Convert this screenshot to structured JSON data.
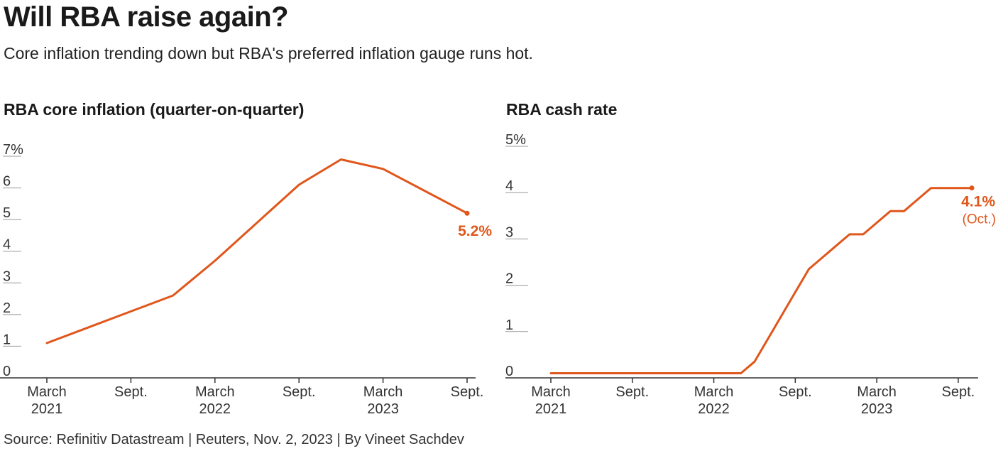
{
  "title": "Will RBA raise again?",
  "subtitle": "Core inflation trending down but RBA's preferred inflation gauge runs hot.",
  "source": "Source: Refinitiv Datastream | Reuters, Nov. 2, 2023 | By Vineet Sachdev",
  "colors": {
    "line": "#e0561b",
    "axis": "#333333",
    "grid": "#999999"
  },
  "chart_data": [
    {
      "type": "line",
      "title": "RBA core inflation (quarter-on-quarter)",
      "ylim": [
        0,
        7
      ],
      "yticks": [
        0,
        1,
        2,
        3,
        4,
        5,
        6,
        7
      ],
      "ytick_labels": [
        "0",
        "1",
        "2",
        "3",
        "4",
        "5",
        "6",
        "7%"
      ],
      "xlim": [
        0,
        10
      ],
      "xticks": [
        {
          "x": 0,
          "line1": "March",
          "line2": "2021"
        },
        {
          "x": 2,
          "line1": "Sept.",
          "line2": ""
        },
        {
          "x": 4,
          "line1": "March",
          "line2": "2022"
        },
        {
          "x": 6,
          "line1": "Sept.",
          "line2": ""
        },
        {
          "x": 8,
          "line1": "March",
          "line2": "2023"
        },
        {
          "x": 10,
          "line1": "Sept.",
          "line2": ""
        }
      ],
      "x": [
        0,
        1,
        2,
        3,
        4,
        5,
        6,
        7,
        8,
        9,
        10
      ],
      "values": [
        1.1,
        1.6,
        2.1,
        2.6,
        3.7,
        4.9,
        6.1,
        6.9,
        6.6,
        5.9,
        5.2
      ],
      "end_label": "5.2%",
      "end_sublabel": ""
    },
    {
      "type": "line",
      "title": "RBA cash rate",
      "ylim": [
        0,
        5
      ],
      "yticks": [
        0,
        1,
        2,
        3,
        4,
        5
      ],
      "ytick_labels": [
        "0",
        "1",
        "2",
        "3",
        "4",
        "5%"
      ],
      "xlim": [
        0,
        31
      ],
      "xticks": [
        {
          "x": 0,
          "line1": "March",
          "line2": "2021"
        },
        {
          "x": 6,
          "line1": "Sept.",
          "line2": ""
        },
        {
          "x": 12,
          "line1": "March",
          "line2": "2022"
        },
        {
          "x": 18,
          "line1": "Sept.",
          "line2": ""
        },
        {
          "x": 24,
          "line1": "March",
          "line2": "2023"
        },
        {
          "x": 30,
          "line1": "Sept.",
          "line2": ""
        }
      ],
      "x": [
        0,
        14,
        15,
        16,
        17,
        18,
        19,
        20,
        21,
        22,
        23,
        24,
        25,
        26,
        27,
        28,
        29,
        30,
        31
      ],
      "values": [
        0.1,
        0.1,
        0.35,
        0.85,
        1.35,
        1.85,
        2.35,
        2.6,
        2.85,
        3.1,
        3.1,
        3.35,
        3.6,
        3.6,
        3.85,
        4.1,
        4.1,
        4.1,
        4.1
      ],
      "end_label": "4.1%",
      "end_sublabel": "(Oct.)"
    }
  ]
}
